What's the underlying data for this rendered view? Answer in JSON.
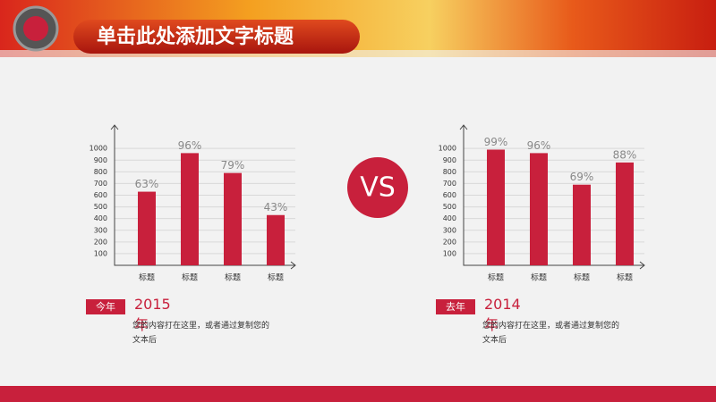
{
  "header": {
    "title": "单击此处添加文字标题"
  },
  "vs": "VS",
  "chart_data": [
    {
      "type": "bar",
      "categories": [
        "标题",
        "标题",
        "标题",
        "标题"
      ],
      "values": [
        630,
        960,
        790,
        430
      ],
      "value_labels": [
        "63%",
        "96%",
        "79%",
        "43%"
      ],
      "color": "#c8203c",
      "ylim": [
        0,
        1200
      ],
      "yticks": [
        100,
        200,
        300,
        400,
        500,
        600,
        700,
        800,
        900,
        1000
      ],
      "grid": true
    },
    {
      "type": "bar",
      "categories": [
        "标题",
        "标题",
        "标题",
        "标题"
      ],
      "values": [
        990,
        960,
        690,
        880
      ],
      "value_labels": [
        "99%",
        "96%",
        "69%",
        "88%"
      ],
      "color": "#c8203c",
      "ylim": [
        0,
        1200
      ],
      "yticks": [
        100,
        200,
        300,
        400,
        500,
        600,
        700,
        800,
        900,
        1000
      ],
      "grid": true
    }
  ],
  "captions": [
    {
      "tag": "今年",
      "year": "2015年",
      "text": "您的内容打在这里，或者通过复制您的文本后"
    },
    {
      "tag": "去年",
      "year": "2014年",
      "text": "您的内容打在这里，或者通过复制您的文本后"
    }
  ]
}
